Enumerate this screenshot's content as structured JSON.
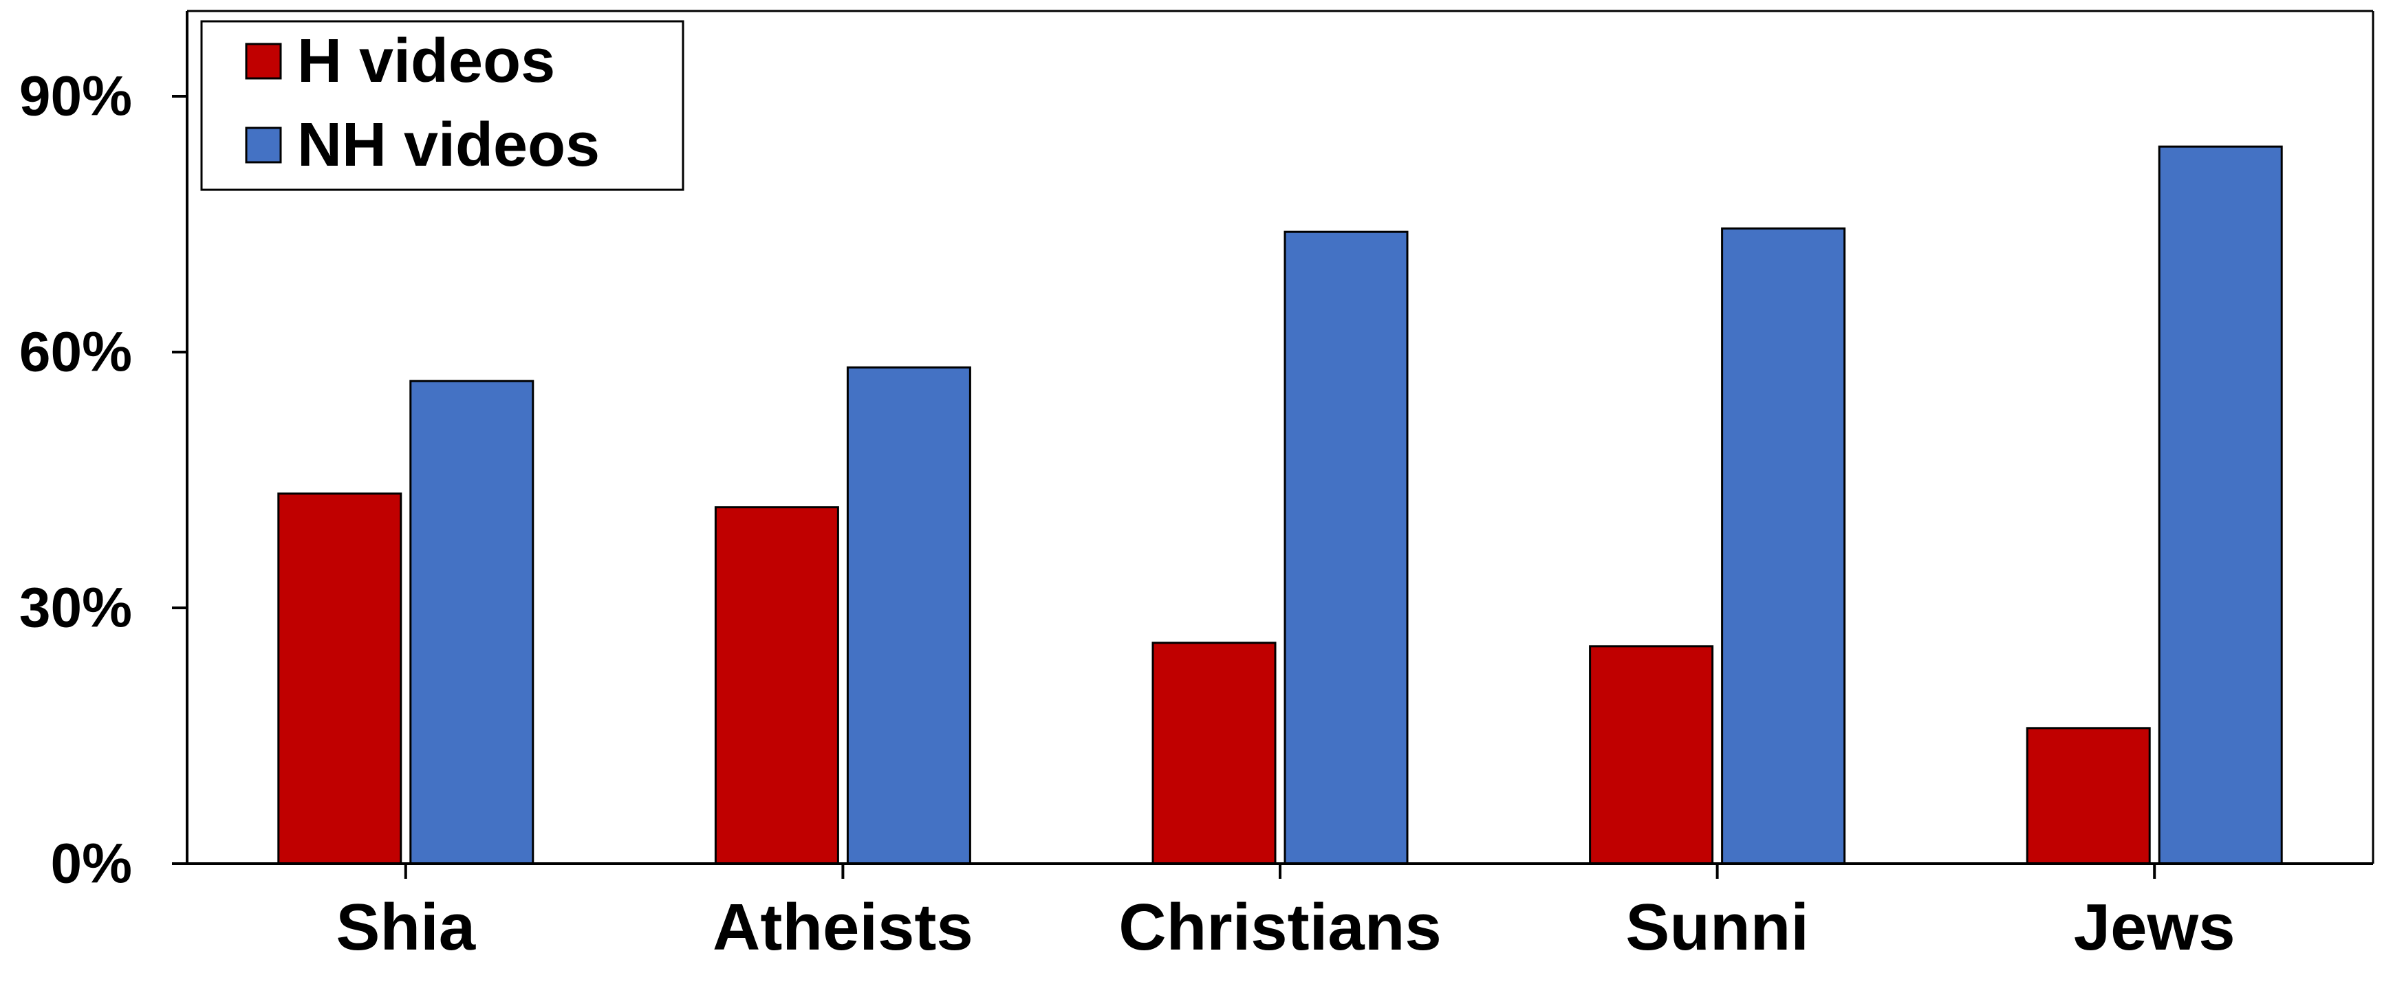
{
  "chart_data": {
    "type": "bar",
    "title": "",
    "xlabel": "",
    "ylabel": "",
    "categories": [
      "Shia",
      "Atheists",
      "Christians",
      "Sunni",
      "Jews"
    ],
    "series": [
      {
        "name": "H videos",
        "color": "#C00000",
        "values": [
          43.4,
          41.8,
          25.9,
          25.5,
          15.9
        ]
      },
      {
        "name": "NH videos",
        "color": "#4472C4",
        "values": [
          56.6,
          58.2,
          74.1,
          74.5,
          84.1
        ]
      }
    ],
    "ylim": [
      0,
      100
    ],
    "yticks": [
      0,
      30,
      60,
      90
    ],
    "ytick_labels": [
      "0%",
      "30%",
      "60%",
      "90%"
    ],
    "grid": false,
    "legend_position": "top-left"
  }
}
